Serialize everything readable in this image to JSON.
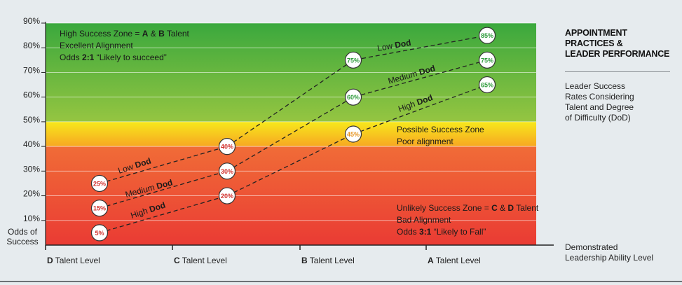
{
  "chart_data": {
    "type": "line",
    "title": "APPOINTMENT PRACTICES & LEADER PERFORMANCE",
    "subtitle": "Leader Success Rates Considering Talent and Degree of Difficulty (DoD)",
    "xlabel": "Demonstrated Leadership Ability Level",
    "ylabel": "Odds of Success",
    "categories": [
      "D Talent Level",
      "C Talent Level",
      "B Talent Level",
      "A Talent Level"
    ],
    "x_ticks": [
      {
        "bold": "D",
        "rest": " Talent Level"
      },
      {
        "bold": "C",
        "rest": " Talent Level"
      },
      {
        "bold": "B",
        "rest": " Talent Level"
      },
      {
        "bold": "A",
        "rest": " Talent Level"
      }
    ],
    "y_ticks": [
      "10%",
      "20%",
      "30%",
      "40%",
      "50%",
      "60%",
      "70%",
      "80%",
      "90%"
    ],
    "ylim": [
      0,
      90
    ],
    "grid": true,
    "series": [
      {
        "name": "Low Dod",
        "label_plain": "Low ",
        "label_bold": "Dod",
        "values": [
          25,
          40,
          75,
          85
        ],
        "point_labels": [
          "25%",
          "40%",
          "75%",
          "85%"
        ]
      },
      {
        "name": "Medium Dod",
        "label_plain": "Medium ",
        "label_bold": "Dod",
        "values": [
          15,
          30,
          60,
          75
        ],
        "point_labels": [
          "15%",
          "30%",
          "60%",
          "75%"
        ]
      },
      {
        "name": "High Dod",
        "label_plain": "High ",
        "label_bold": "Dod",
        "values": [
          5,
          20,
          45,
          65
        ],
        "point_labels": [
          "5%",
          "20%",
          "45%",
          "65%"
        ]
      }
    ],
    "zones": [
      {
        "name": "high",
        "from": 50,
        "to": 90,
        "colors": [
          "#3aa83d",
          "#95c541"
        ],
        "lines": [
          [
            {
              "t": "High Success Zone = "
            },
            {
              "t": "A",
              "b": true
            },
            {
              "t": " & "
            },
            {
              "t": "B",
              "b": true
            },
            {
              "t": " Talent"
            }
          ],
          [
            {
              "t": "Excellent Alignment"
            }
          ],
          [
            {
              "t": "Odds "
            },
            {
              "t": "2:1",
              "b": true
            },
            {
              "t": "  “Likely to succeed”"
            }
          ]
        ]
      },
      {
        "name": "possible",
        "from": 40,
        "to": 50,
        "colors": [
          "#f7e81c",
          "#f7a722"
        ],
        "lines": [
          [
            {
              "t": "Possible Success Zone"
            }
          ],
          [
            {
              "t": "Poor alignment"
            }
          ]
        ]
      },
      {
        "name": "unlikely",
        "from": 0,
        "to": 40,
        "colors": [
          "#f06c37",
          "#ea3b34"
        ],
        "lines": [
          [
            {
              "t": "Unlikely Success Zone = "
            },
            {
              "t": "C",
              "b": true
            },
            {
              "t": " & "
            },
            {
              "t": "D",
              "b": true
            },
            {
              "t": " Talent"
            }
          ],
          [
            {
              "t": "Bad Alignment"
            }
          ],
          [
            {
              "t": "Odds "
            },
            {
              "t": "3:1",
              "b": true
            },
            {
              "t": "  “Likely to Fall”"
            }
          ]
        ]
      }
    ],
    "point_label_colors": {
      "low": "#d2312d",
      "possible": "#e69421",
      "high": "#2f9c3c"
    }
  },
  "labels": {
    "odds_line1": "Odds of",
    "odds_line2": "Success",
    "side_title_1": "APPOINTMENT",
    "side_title_2": "PRACTICES &",
    "side_title_3": "LEADER PERFORMANCE",
    "side_sub_1": "Leader Success",
    "side_sub_2": "Rates Considering",
    "side_sub_3": "Talent and Degree",
    "side_sub_4": "of Difficulty (DoD)",
    "foot_1": "Demonstrated",
    "foot_2": "Leadership Ability Level"
  }
}
